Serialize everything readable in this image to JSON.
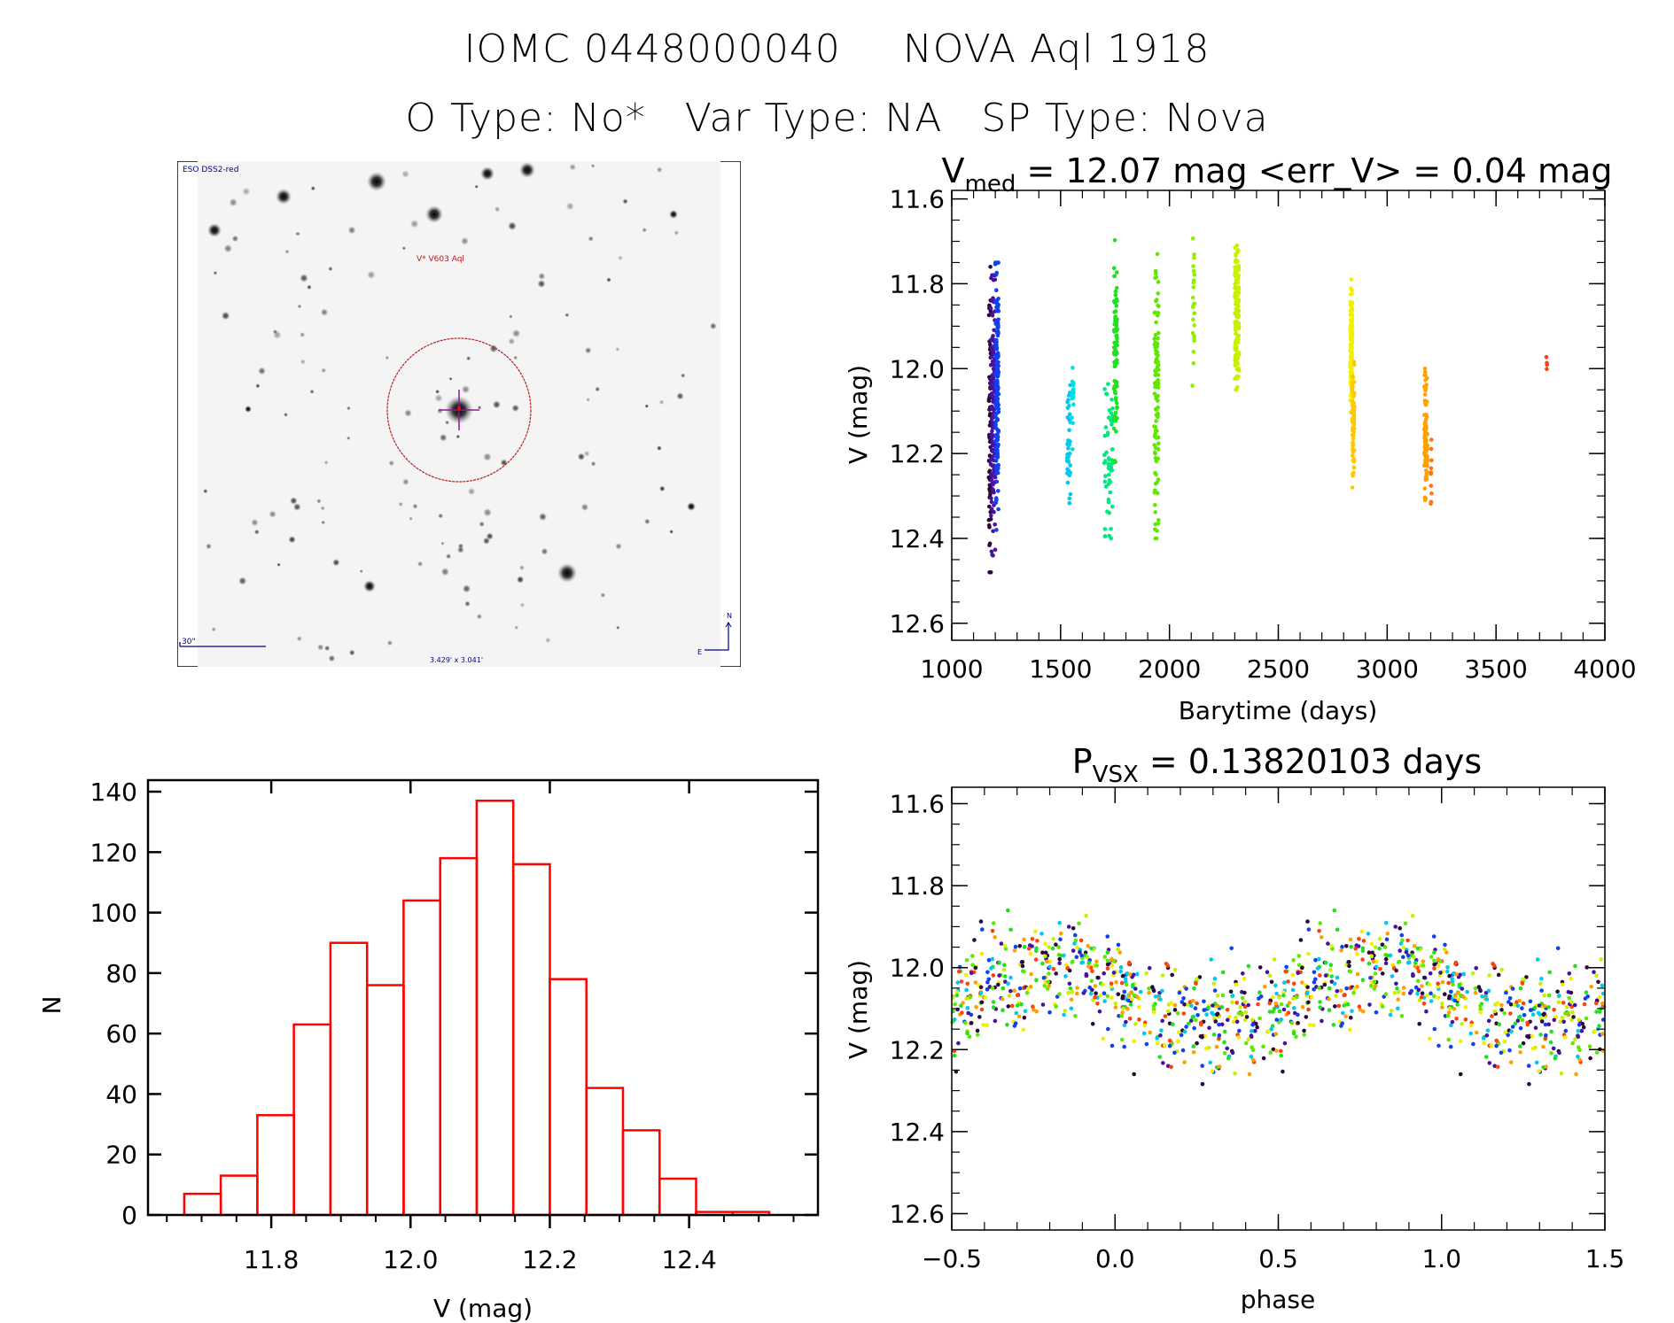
{
  "header": {
    "object_id": "IOMC 0448000040",
    "object_name": "NOVA Aql 1918",
    "o_type_label": "O Type:",
    "o_type": "No*",
    "var_type_label": "Var Type:",
    "var_type": "NA",
    "sp_type_label": "SP Type:",
    "sp_type": "Nova"
  },
  "finder_chart": {
    "survey_label": "ESO DSS2-red",
    "target_label": "V* V603 Aql",
    "scale_bar_label": "30\"",
    "field_size_label": "3.429' x 3.041'",
    "north_label": "N",
    "east_label": "E",
    "colors": {
      "circle": "#b22222",
      "crosshair": "#8b1a8b",
      "annotation": "#00008b"
    }
  },
  "chart_data": [
    {
      "id": "lightcurve",
      "type": "scatter",
      "title_main": "V",
      "title_sub": "med",
      "title_rest": " = 12.07 mag <err_V> = 0.04 mag",
      "xlabel": "Barytime (days)",
      "ylabel": "V (mag)",
      "xlim": [
        1000,
        4000
      ],
      "ylim": [
        12.64,
        11.58
      ],
      "y_inverted": true,
      "xticks": [
        1000,
        1500,
        2000,
        2500,
        3000,
        3500,
        4000
      ],
      "xtick_labels": [
        "1000",
        "1500",
        "2000",
        "2500",
        "3000",
        "3500",
        "4000"
      ],
      "yticks": [
        11.6,
        11.8,
        12.0,
        12.2,
        12.4,
        12.6
      ],
      "ytick_labels": [
        "11.6",
        "11.8",
        "12.0",
        "12.2",
        "12.4",
        "12.6"
      ],
      "grid": false,
      "seasons": [
        {
          "t": [
            1170,
            1180
          ],
          "vmin": 11.76,
          "vmax": 12.48,
          "n": 70,
          "color": "#2a0a3a"
        },
        {
          "t": [
            1180,
            1200
          ],
          "vmin": 11.78,
          "vmax": 12.44,
          "n": 150,
          "color": "#4a10a0"
        },
        {
          "t": [
            1200,
            1215
          ],
          "vmin": 11.75,
          "vmax": 12.38,
          "n": 170,
          "color": "#1040f0"
        },
        {
          "t": [
            1530,
            1545
          ],
          "vmin": 12.03,
          "vmax": 12.33,
          "n": 45,
          "color": "#00c8f0"
        },
        {
          "t": [
            1550,
            1560
          ],
          "vmin": 11.96,
          "vmax": 12.19,
          "n": 15,
          "color": "#00e0e0"
        },
        {
          "t": [
            1700,
            1740
          ],
          "vmin": 11.99,
          "vmax": 12.4,
          "n": 55,
          "color": "#00e880"
        },
        {
          "t": [
            1745,
            1760
          ],
          "vmin": 11.69,
          "vmax": 12.22,
          "n": 90,
          "color": "#20e020"
        },
        {
          "t": [
            1930,
            1950
          ],
          "vmin": 11.73,
          "vmax": 12.4,
          "n": 110,
          "color": "#60e800"
        },
        {
          "t": [
            2105,
            2115
          ],
          "vmin": 11.68,
          "vmax": 12.04,
          "n": 25,
          "color": "#90f000"
        },
        {
          "t": [
            2300,
            2320
          ],
          "vmin": 11.71,
          "vmax": 12.05,
          "n": 160,
          "color": "#c8f000"
        },
        {
          "t": [
            2830,
            2840
          ],
          "vmin": 11.78,
          "vmax": 12.12,
          "n": 120,
          "color": "#f0f000"
        },
        {
          "t": [
            2840,
            2850
          ],
          "vmin": 11.98,
          "vmax": 12.28,
          "n": 70,
          "color": "#ffc800"
        },
        {
          "t": [
            3170,
            3185
          ],
          "vmin": 12.0,
          "vmax": 12.31,
          "n": 90,
          "color": "#ffa000"
        },
        {
          "t": [
            3200,
            3205
          ],
          "vmin": 12.15,
          "vmax": 12.34,
          "n": 10,
          "color": "#ff7010"
        },
        {
          "t": [
            3730,
            3735
          ],
          "vmin": 11.96,
          "vmax": 12.03,
          "n": 4,
          "color": "#ff4010"
        }
      ]
    },
    {
      "id": "histogram",
      "type": "bar",
      "xlabel": "V (mag)",
      "ylabel": "N",
      "xlim": [
        11.623,
        12.585
      ],
      "ylim": [
        0,
        145
      ],
      "xticks": [
        11.8,
        12.0,
        12.2,
        12.4
      ],
      "xtick_labels": [
        "11.8",
        "12.0",
        "12.2",
        "12.4"
      ],
      "yticks": [
        0,
        20,
        40,
        60,
        80,
        100,
        120,
        140
      ],
      "ytick_labels": [
        "0",
        "20",
        "40",
        "60",
        "80",
        "100",
        "120",
        "140"
      ],
      "bin_start": 11.675,
      "bin_width": 0.0525,
      "values": [
        7,
        13,
        33,
        63,
        90,
        76,
        104,
        118,
        137,
        116,
        78,
        42,
        28,
        12,
        1,
        1
      ],
      "bar_color": "#ff0000",
      "grid": false
    },
    {
      "id": "phased",
      "type": "scatter",
      "title_main": "P",
      "title_sub": "VSX",
      "title_rest": " = 0.13820103 days",
      "xlabel": "phase",
      "ylabel": "V (mag)",
      "xlim": [
        -0.5,
        1.5
      ],
      "ylim": [
        12.64,
        11.56
      ],
      "y_inverted": true,
      "xticks": [
        -0.5,
        0.0,
        0.5,
        1.0,
        1.5
      ],
      "xtick_labels": [
        "−0.5",
        "0.0",
        "0.5",
        "1.0",
        "1.5"
      ],
      "yticks": [
        11.6,
        11.8,
        12.0,
        12.2,
        12.4,
        12.6
      ],
      "ytick_labels": [
        "11.6",
        "11.8",
        "12.0",
        "12.2",
        "12.4",
        "12.6"
      ],
      "period_days": 0.13820103,
      "median_v": 12.07,
      "points_per_cycle": 620,
      "phase_colors": [
        "#2a0a3a",
        "#4a10a0",
        "#1040f0",
        "#00c8f0",
        "#20e020",
        "#60e800",
        "#c8f000",
        "#f0f000",
        "#ffa000",
        "#ff4010"
      ],
      "grid": false
    }
  ]
}
